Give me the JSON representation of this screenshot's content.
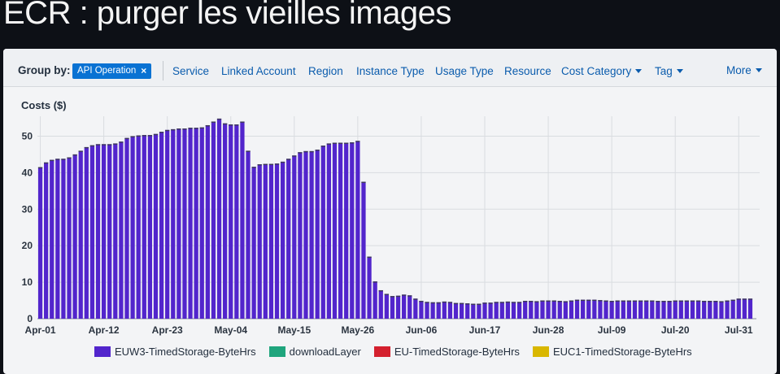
{
  "slide": {
    "title": "ECR : purger les vieilles images"
  },
  "toolbar": {
    "group_by_label": "Group by:",
    "chip_label": "API Operation",
    "chip_close": "×",
    "items": [
      {
        "label": "Service",
        "dropdown": false
      },
      {
        "label": "Linked Account",
        "dropdown": false
      },
      {
        "label": "Region",
        "dropdown": false
      },
      {
        "label": "Instance Type",
        "dropdown": false
      },
      {
        "label": "Usage Type",
        "dropdown": false
      },
      {
        "label": "Resource",
        "dropdown": false
      },
      {
        "label": "Cost Category",
        "dropdown": true
      },
      {
        "label": "Tag",
        "dropdown": true
      }
    ],
    "more_label": "More"
  },
  "colors": {
    "purple": "#5225cc",
    "cap": "#3d3a55",
    "teal": "#1fa57d",
    "red": "#d4202e",
    "yellow": "#d9b700",
    "grid": "#d9dce0",
    "accent": "#0972d3"
  },
  "chart_data": {
    "type": "bar",
    "stacked": true,
    "ylabel": "Costs ($)",
    "ylim": [
      0,
      55
    ],
    "yticks": [
      0,
      10,
      20,
      30,
      40,
      50
    ],
    "xtick_labels": [
      "Apr-01",
      "Apr-12",
      "Apr-23",
      "May-04",
      "May-15",
      "May-26",
      "Jun-06",
      "Jun-17",
      "Jun-28",
      "Jul-09",
      "Jul-20",
      "Jul-31"
    ],
    "xtick_interval_days": 11,
    "grid": true,
    "legend_position": "bottom",
    "categories_range": [
      "Apr-01",
      "Jul-31"
    ],
    "series": [
      {
        "name": "EUW3-TimedStorage-ByteHrs",
        "color": "#5225cc",
        "values": [
          41.5,
          42.8,
          43.5,
          43.8,
          43.8,
          44.2,
          45,
          46,
          47,
          47.5,
          47.8,
          47.8,
          47.8,
          48,
          48.5,
          49.5,
          50,
          50.2,
          50.3,
          50.3,
          50.6,
          51.2,
          51.7,
          51.9,
          52.1,
          52.1,
          52.3,
          52.3,
          52.4,
          53,
          54,
          54.8,
          53.5,
          53.2,
          53.2,
          54,
          46,
          41.6,
          42.3,
          42.4,
          42.4,
          42.5,
          43,
          43.8,
          44.7,
          45.6,
          45.9,
          45.9,
          46.3,
          47.4,
          48,
          48.2,
          48.2,
          48.2,
          48.3,
          48.7,
          37.5,
          17,
          10.2,
          7.8,
          6.8,
          6.2,
          6.3,
          6.6,
          6.4,
          5.5,
          4.9,
          4.6,
          4.5,
          4.5,
          4.7,
          4.6,
          4.3,
          4.3,
          4.2,
          4.1,
          4.1,
          4.4,
          4.4,
          4.6,
          4.6,
          4.7,
          4.6,
          4.6,
          4.9,
          4.9,
          4.8,
          5,
          5,
          5,
          4.9,
          4.8,
          5,
          5.2,
          5.2,
          5.2,
          5.2,
          5.1,
          5,
          4.9,
          5,
          5,
          5,
          5,
          5,
          5,
          5,
          4.9,
          4.9,
          4.9,
          5,
          5,
          5,
          5,
          5,
          4.9,
          4.9,
          4.9,
          4.8,
          5,
          5.2,
          5.5,
          5.5,
          5.5
        ]
      },
      {
        "name": "downloadLayer",
        "color": "#1fa57d",
        "values": []
      },
      {
        "name": "EU-TimedStorage-ByteHrs",
        "color": "#d4202e",
        "values": []
      },
      {
        "name": "EUC1-TimedStorage-ByteHrs",
        "color": "#d9b700",
        "values": []
      }
    ]
  }
}
